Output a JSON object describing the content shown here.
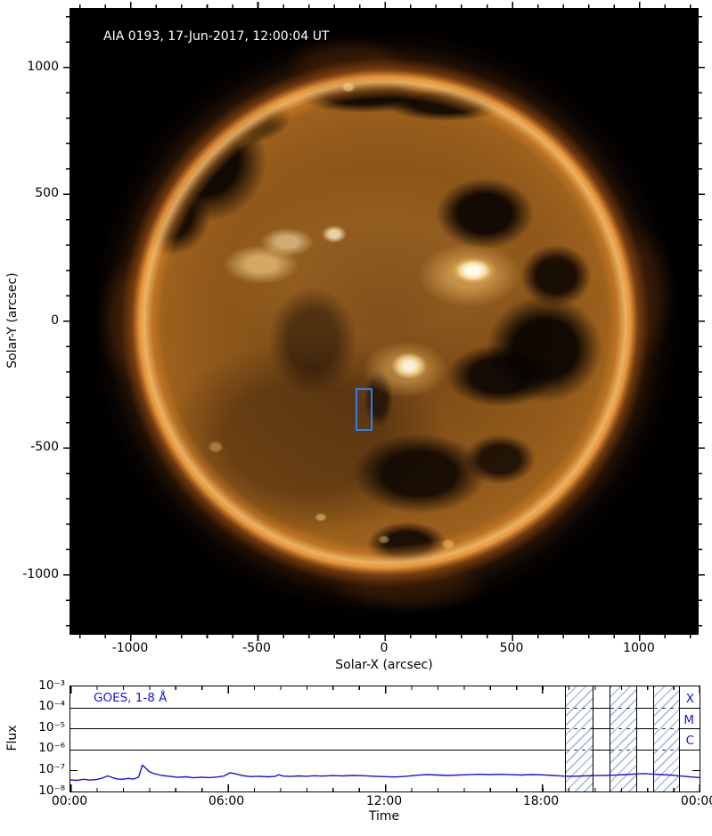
{
  "figure": {
    "kind": "solar-observation-figure",
    "panels": [
      "AIA full-disk image",
      "GOES X-ray flux time series"
    ]
  },
  "colors": {
    "plot_blue": "#1414dd",
    "roi_blue": "#2e7ef0",
    "hatch_blue": "#809ccd",
    "frame_black": "#000000",
    "image_background": "#000000",
    "disk_bronze": "#9d611d"
  },
  "chart_data": [
    {
      "type": "image",
      "title": "AIA 0193, 17-Jun-2017, 12:00:04 UT",
      "xlabel": "Solar-X (arcsec)",
      "ylabel": "Solar-Y (arcsec)",
      "xlim": [
        -1235,
        1235
      ],
      "ylim": [
        -1235,
        1235
      ],
      "x_ticks": [
        -1000,
        -500,
        0,
        500,
        1000
      ],
      "y_ticks": [
        1000,
        500,
        0,
        -500,
        -1000
      ],
      "x_tick_labels": [
        "-1000",
        "-500",
        "0",
        "500",
        "1000"
      ],
      "y_tick_labels": [
        "1000",
        "500",
        "0",
        "-500",
        "-1000"
      ],
      "minor_tick_step_arcsec": 100,
      "description": "SDO/AIA 193 A full-disk solar image, bronze/gold colormap, with dark coronal holes and bright active regions; blue ROI rectangle drawn south of disk center",
      "roi_box_arcsec": {
        "x": [
          -115,
          -49
        ],
        "y": [
          -430,
          -262
        ]
      }
    },
    {
      "type": "line",
      "xlabel": "Time",
      "ylabel": "Flux",
      "yscale": "log",
      "ylim": [
        1e-08,
        0.001
      ],
      "xlim_hours": [
        0,
        24
      ],
      "x_ticks_hours": [
        0,
        6,
        12,
        18,
        24
      ],
      "x_tick_labels": [
        "00:00",
        "06:00",
        "12:00",
        "18:00",
        "00:00"
      ],
      "y_tick_labels": [
        "10⁻³",
        "10⁻⁴",
        "10⁻⁵",
        "10⁻⁶",
        "10⁻⁷",
        "10⁻⁸"
      ],
      "minor_tick_step_hours": 1,
      "class_labels": [
        "X",
        "M",
        "C"
      ],
      "class_lines": {
        "X": 0.0001,
        "M": 1e-05,
        "C": 1e-06
      },
      "hatch_intervals_hours": [
        [
          18.88,
          19.96
        ],
        [
          20.57,
          21.61
        ],
        [
          22.23,
          23.25
        ]
      ],
      "grid": false,
      "legend_position": "upper-left",
      "series": [
        {
          "name": "GOES, 1-8 Å",
          "color": "#1414dd",
          "x": [
            0,
            0.25,
            0.5,
            0.75,
            1.0,
            1.2,
            1.42,
            1.6,
            1.8,
            2.0,
            2.2,
            2.4,
            2.6,
            2.75,
            2.85,
            3.0,
            3.2,
            3.5,
            3.8,
            4.1,
            4.4,
            4.7,
            5.0,
            5.3,
            5.6,
            5.85,
            6.1,
            6.3,
            6.6,
            6.9,
            7.2,
            7.5,
            7.8,
            7.95,
            8.1,
            8.4,
            8.7,
            9.0,
            9.3,
            9.6,
            10.0,
            10.4,
            10.8,
            11.2,
            11.6,
            12.0,
            12.4,
            12.8,
            13.2,
            13.6,
            14.0,
            14.4,
            14.8,
            15.2,
            15.6,
            16.0,
            16.4,
            16.8,
            17.2,
            17.6,
            18.0,
            18.4,
            18.8,
            19.2,
            19.6,
            20.0,
            20.4,
            20.8,
            21.2,
            21.6,
            21.9,
            22.2,
            22.5,
            22.9,
            23.3,
            23.7,
            24.0
          ],
          "y": [
            3.6e-08,
            3.4e-08,
            3.8e-08,
            3.5e-08,
            3.7e-08,
            4.3e-08,
            5.5e-08,
            4.6e-08,
            3.9e-08,
            3.8e-08,
            4.2e-08,
            3.9e-08,
            4.8e-08,
            1.8e-07,
            1.4e-07,
            9e-08,
            7e-08,
            5.8e-08,
            5.2e-08,
            4.7e-08,
            5e-08,
            4.5e-08,
            4.8e-08,
            4.6e-08,
            4.9e-08,
            5.4e-08,
            7.8e-08,
            6.9e-08,
            5.6e-08,
            5.1e-08,
            5.3e-08,
            5e-08,
            5.2e-08,
            6.3e-08,
            5.4e-08,
            5.2e-08,
            5.5e-08,
            5.3e-08,
            5.6e-08,
            5.4e-08,
            5.7e-08,
            5.5e-08,
            5.8e-08,
            5.6e-08,
            5.3e-08,
            5.1e-08,
            4.9e-08,
            5.3e-08,
            5.9e-08,
            6.4e-08,
            6.1e-08,
            5.8e-08,
            6.1e-08,
            6.3e-08,
            6.6e-08,
            6.4e-08,
            6.6e-08,
            6.3e-08,
            6.1e-08,
            6.4e-08,
            6.2e-08,
            5.8e-08,
            5.4e-08,
            5.3e-08,
            5.5e-08,
            5.7e-08,
            5.8e-08,
            6e-08,
            6.4e-08,
            6.9e-08,
            7.1e-08,
            6.8e-08,
            6.4e-08,
            6e-08,
            5.4e-08,
            4.9e-08,
            4.6e-08
          ]
        }
      ]
    }
  ]
}
